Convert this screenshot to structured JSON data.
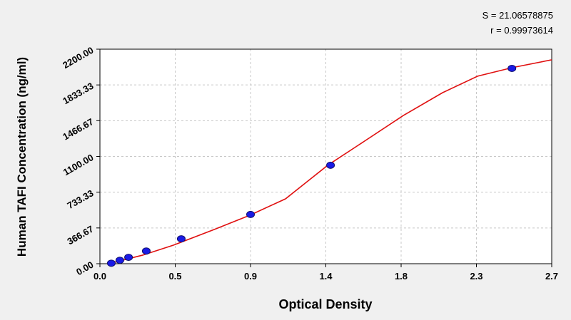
{
  "chart_data": {
    "type": "scatter",
    "annotations": [
      "S = 21.06578875",
      "r = 0.99973614"
    ],
    "xlabel": "Optical Density",
    "ylabel": "Human TAFI Concentration (ng/ml)",
    "xlim": [
      0,
      2.7
    ],
    "ylim": [
      0,
      2200
    ],
    "xticks": [
      {
        "value": 0,
        "label": "0.0"
      },
      {
        "value": 0.45,
        "label": "0.5"
      },
      {
        "value": 0.9,
        "label": "0.9"
      },
      {
        "value": 1.35,
        "label": "1.4"
      },
      {
        "value": 1.8,
        "label": "1.8"
      },
      {
        "value": 2.25,
        "label": "2.3"
      },
      {
        "value": 2.7,
        "label": "2.7"
      }
    ],
    "yticks": [
      {
        "value": 0,
        "label": "0.00"
      },
      366.67,
      733.33,
      {
        "value": 1100,
        "label": "1100.00"
      },
      1466.67,
      1833.33,
      {
        "value": 2200,
        "label": "2200.00"
      }
    ],
    "grid": true,
    "series": [
      {
        "kind": "points",
        "color": "#1a1ae6",
        "x": [
          0.068,
          0.119,
          0.171,
          0.277,
          0.486,
          0.9,
          1.378,
          2.462
        ],
        "values": [
          5,
          35,
          65,
          130,
          255,
          505,
          1010,
          2003
        ]
      },
      {
        "kind": "line",
        "color": "#e01010",
        "x": [
          0.068,
          0.256,
          0.439,
          0.683,
          0.896,
          1.109,
          1.361,
          1.536,
          1.813,
          2.048,
          2.257,
          2.462,
          2.7
        ],
        "values": [
          7,
          88,
          190,
          351,
          497,
          665,
          1009,
          1206,
          1520,
          1754,
          1923,
          2010,
          2091
        ]
      }
    ]
  }
}
